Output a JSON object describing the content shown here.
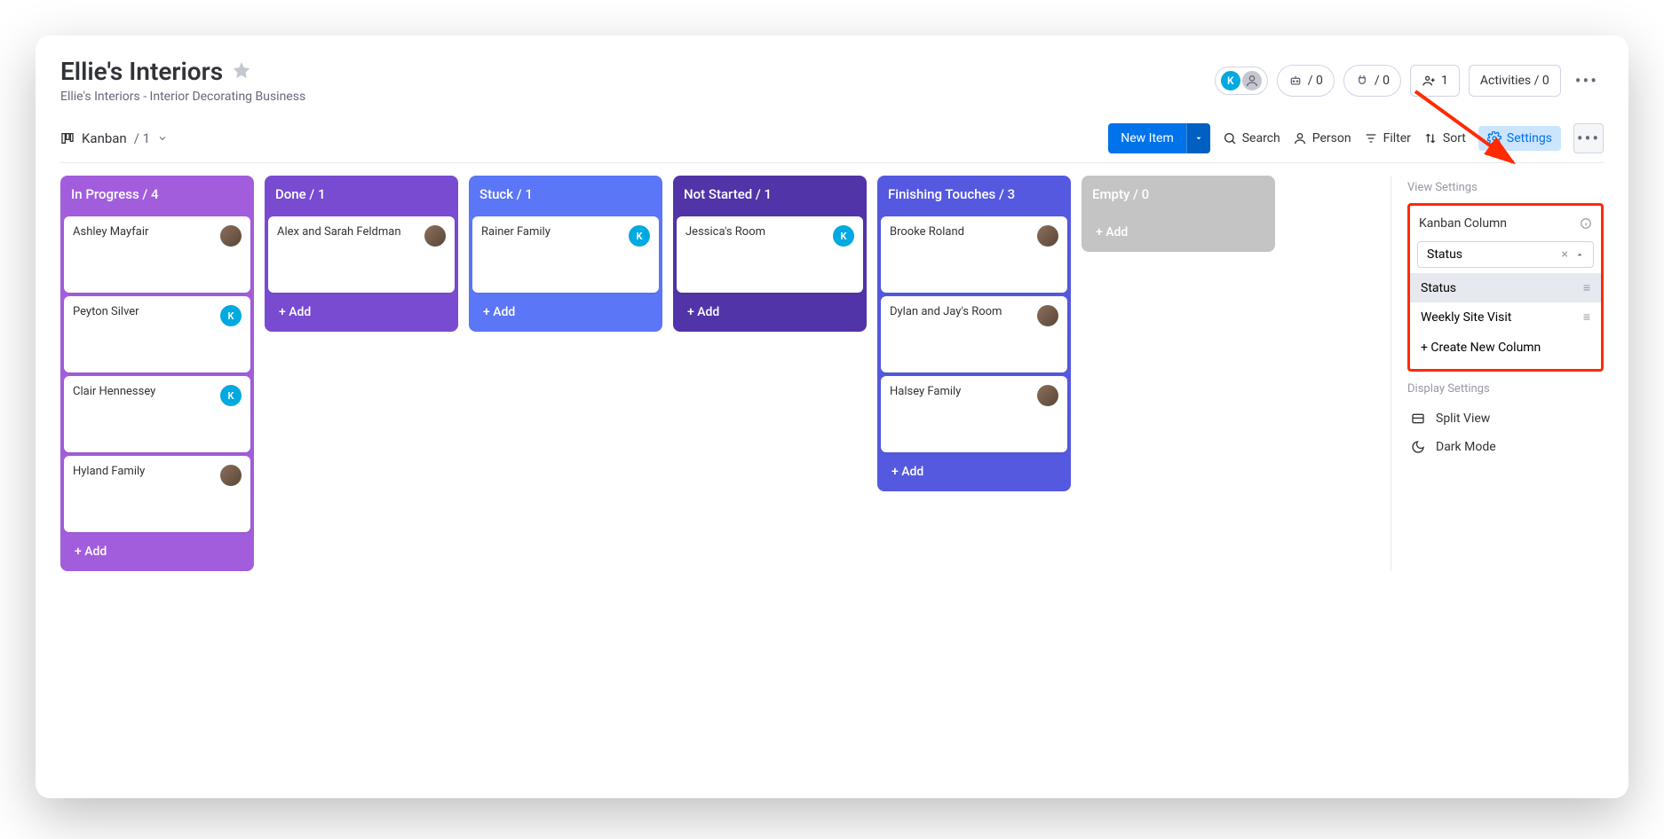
{
  "header": {
    "title": "Ellie's Interiors",
    "subtitle": "Ellie's Interiors - Interior Decorating Business",
    "automations_count": "/ 0",
    "integrations_count": "/ 0",
    "members_count": "1",
    "activities_label": "Activities / 0",
    "avatar_initial": "K"
  },
  "view": {
    "name": "Kanban",
    "count": "/ 1"
  },
  "toolbar": {
    "new_item": "New Item",
    "search": "Search",
    "person": "Person",
    "filter": "Filter",
    "sort": "Sort",
    "settings": "Settings"
  },
  "columns": [
    {
      "title": "In Progress / 4",
      "header_color": "#a25ddc",
      "body_color": "#a25ddc",
      "add_label": "+ Add",
      "cards": [
        {
          "name": "Ashley Mayfair",
          "assignee_type": "photo"
        },
        {
          "name": "Peyton Silver",
          "assignee_type": "k"
        },
        {
          "name": "Clair Hennessey",
          "assignee_type": "k"
        },
        {
          "name": "Hyland Family",
          "assignee_type": "photo"
        }
      ]
    },
    {
      "title": "Done / 1",
      "header_color": "#784bd1",
      "body_color": "#784bd1",
      "add_label": "+ Add",
      "cards": [
        {
          "name": "Alex and Sarah Feldman",
          "assignee_type": "photo"
        }
      ]
    },
    {
      "title": "Stuck / 1",
      "header_color": "#5b76f7",
      "body_color": "#5b76f7",
      "add_label": "+ Add",
      "cards": [
        {
          "name": "Rainer Family",
          "assignee_type": "k"
        }
      ]
    },
    {
      "title": "Not Started / 1",
      "header_color": "#5034a8",
      "body_color": "#5034a8",
      "add_label": "+ Add",
      "cards": [
        {
          "name": "Jessica's Room",
          "assignee_type": "k"
        }
      ]
    },
    {
      "title": "Finishing Touches / 3",
      "header_color": "#5559df",
      "body_color": "#5559df",
      "add_label": "+ Add",
      "cards": [
        {
          "name": "Brooke Roland",
          "assignee_type": "photo"
        },
        {
          "name": "Dylan and Jay's Room",
          "assignee_type": "photo"
        },
        {
          "name": "Halsey Family",
          "assignee_type": "photo"
        }
      ]
    },
    {
      "title": "Empty / 0",
      "header_color": "#c4c4c4",
      "body_color": "#c4c4c4",
      "add_label": "+ Add",
      "cards": []
    }
  ],
  "settings_panel": {
    "view_settings_label": "View Settings",
    "kanban_column_label": "Kanban Column",
    "selected_value": "Status",
    "options": [
      {
        "label": "Status",
        "selected": true
      },
      {
        "label": "Weekly Site Visit",
        "selected": false
      }
    ],
    "create_new": "+ Create New Column",
    "display_settings_label": "Display Settings",
    "split_view": "Split View",
    "dark_mode": "Dark Mode"
  },
  "annotation": {
    "arrow_color": "#ff2a00"
  }
}
